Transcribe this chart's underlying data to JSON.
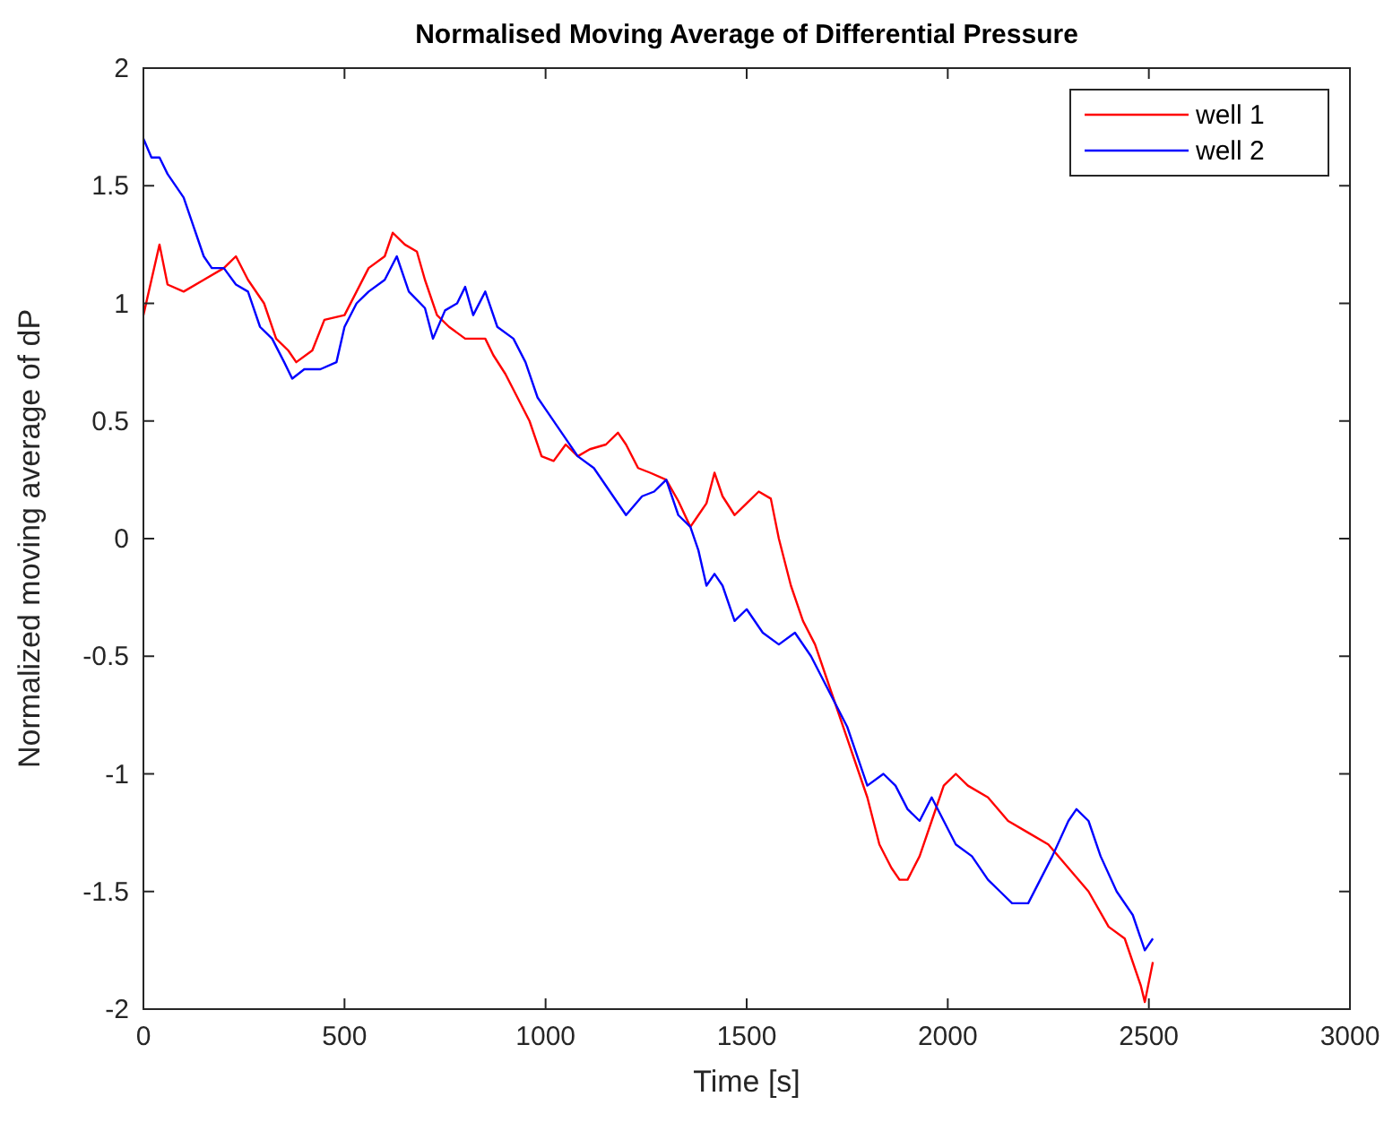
{
  "chart_data": {
    "type": "line",
    "title": "Normalised Moving Average of Differential Pressure",
    "xlabel": "Time [s]",
    "ylabel": "Normalized moving average of dP",
    "xlim": [
      0,
      3000
    ],
    "xticks": [
      0,
      500,
      1000,
      1500,
      2000,
      2500,
      3000
    ],
    "ylim": [
      -2,
      2
    ],
    "yticks": [
      -2,
      -1.5,
      -1,
      -0.5,
      0,
      0.5,
      1,
      1.5,
      2
    ],
    "grid": false,
    "legend": "top right",
    "marker": "none",
    "line_style": "solid",
    "series": [
      {
        "name": "well 1",
        "color": "#ff0000",
        "x": [
          0,
          20,
          40,
          60,
          100,
          150,
          200,
          230,
          260,
          300,
          330,
          360,
          380,
          420,
          450,
          500,
          530,
          560,
          600,
          620,
          650,
          680,
          700,
          730,
          760,
          800,
          850,
          870,
          900,
          930,
          960,
          990,
          1020,
          1050,
          1080,
          1110,
          1150,
          1180,
          1200,
          1230,
          1260,
          1300,
          1330,
          1360,
          1380,
          1400,
          1420,
          1440,
          1470,
          1500,
          1530,
          1560,
          1580,
          1610,
          1640,
          1670,
          1700,
          1720,
          1750,
          1780,
          1800,
          1830,
          1860,
          1880,
          1900,
          1930,
          1960,
          1990,
          2020,
          2050,
          2100,
          2150,
          2200,
          2250,
          2300,
          2350,
          2400,
          2440,
          2480,
          2490,
          2510
        ],
        "values": [
          0.95,
          1.1,
          1.25,
          1.08,
          1.05,
          1.1,
          1.15,
          1.2,
          1.1,
          1.0,
          0.85,
          0.8,
          0.75,
          0.8,
          0.93,
          0.95,
          1.05,
          1.15,
          1.2,
          1.3,
          1.25,
          1.22,
          1.1,
          0.95,
          0.9,
          0.85,
          0.85,
          0.78,
          0.7,
          0.6,
          0.5,
          0.35,
          0.33,
          0.4,
          0.35,
          0.38,
          0.4,
          0.45,
          0.4,
          0.3,
          0.28,
          0.25,
          0.16,
          0.05,
          0.1,
          0.15,
          0.28,
          0.18,
          0.1,
          0.15,
          0.2,
          0.17,
          0.0,
          -0.2,
          -0.35,
          -0.45,
          -0.6,
          -0.7,
          -0.85,
          -1.0,
          -1.1,
          -1.3,
          -1.4,
          -1.45,
          -1.45,
          -1.35,
          -1.2,
          -1.05,
          -1.0,
          -1.05,
          -1.1,
          -1.2,
          -1.25,
          -1.3,
          -1.4,
          -1.5,
          -1.65,
          -1.7,
          -1.9,
          -1.97,
          -1.8
        ]
      },
      {
        "name": "well 2",
        "color": "#0000ff",
        "x": [
          0,
          20,
          40,
          60,
          100,
          130,
          150,
          170,
          200,
          230,
          260,
          290,
          320,
          350,
          370,
          400,
          440,
          480,
          500,
          530,
          560,
          600,
          630,
          660,
          700,
          720,
          750,
          780,
          800,
          820,
          850,
          880,
          920,
          950,
          980,
          1000,
          1040,
          1080,
          1120,
          1160,
          1200,
          1240,
          1270,
          1300,
          1330,
          1360,
          1380,
          1400,
          1420,
          1440,
          1470,
          1500,
          1540,
          1580,
          1620,
          1660,
          1690,
          1720,
          1750,
          1780,
          1800,
          1840,
          1870,
          1900,
          1930,
          1960,
          1990,
          2020,
          2060,
          2100,
          2130,
          2160,
          2200,
          2230,
          2260,
          2300,
          2320,
          2350,
          2380,
          2420,
          2460,
          2490,
          2510
        ],
        "values": [
          1.7,
          1.62,
          1.62,
          1.55,
          1.45,
          1.3,
          1.2,
          1.15,
          1.15,
          1.08,
          1.05,
          0.9,
          0.85,
          0.75,
          0.68,
          0.72,
          0.72,
          0.75,
          0.9,
          1.0,
          1.05,
          1.1,
          1.2,
          1.05,
          0.98,
          0.85,
          0.97,
          1.0,
          1.07,
          0.95,
          1.05,
          0.9,
          0.85,
          0.75,
          0.6,
          0.55,
          0.45,
          0.35,
          0.3,
          0.2,
          0.1,
          0.18,
          0.2,
          0.25,
          0.1,
          0.05,
          -0.05,
          -0.2,
          -0.15,
          -0.2,
          -0.35,
          -0.3,
          -0.4,
          -0.45,
          -0.4,
          -0.5,
          -0.6,
          -0.7,
          -0.8,
          -0.95,
          -1.05,
          -1.0,
          -1.05,
          -1.15,
          -1.2,
          -1.1,
          -1.2,
          -1.3,
          -1.35,
          -1.45,
          -1.5,
          -1.55,
          -1.55,
          -1.45,
          -1.35,
          -1.2,
          -1.15,
          -1.2,
          -1.35,
          -1.5,
          -1.6,
          -1.75,
          -1.7
        ]
      }
    ]
  }
}
